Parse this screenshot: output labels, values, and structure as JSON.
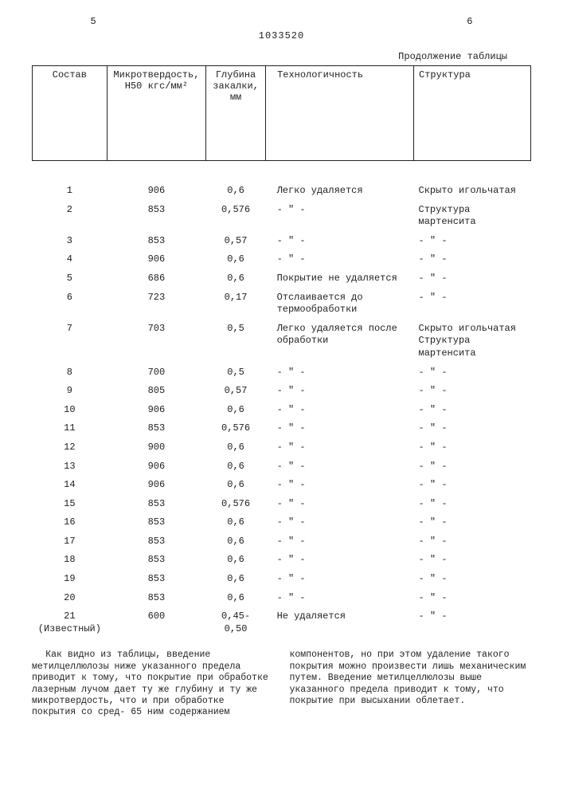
{
  "header": {
    "left_num": "5",
    "right_num": "6",
    "doc_num": "1033520",
    "caption": "Продолжение таблицы"
  },
  "columns": [
    "Состав",
    "Микротвердость,\nH50\nкгс/мм²",
    "Глубина\nзакалки,\nмм",
    "Технологичность",
    "Структура"
  ],
  "ditto": "- \" -",
  "rows": [
    {
      "n": "1",
      "h": "906",
      "d": "0,6",
      "t": "Легко удаляется",
      "s": "Скрыто игольчатая"
    },
    {
      "n": "2",
      "h": "853",
      "d": "0,576",
      "t": "- \" -",
      "s": "Структура мартенсита"
    },
    {
      "n": "3",
      "h": "853",
      "d": "0,57",
      "t": "- \" -",
      "s": "- \" -"
    },
    {
      "n": "4",
      "h": "906",
      "d": "0,6",
      "t": "- \" -",
      "s": "- \" -"
    },
    {
      "n": "5",
      "h": "686",
      "d": "0,6",
      "t": "Покрытие не удаляется",
      "s": "- \" -"
    },
    {
      "n": "6",
      "h": "723",
      "d": "0,17",
      "t": "Отслаивается до термообработки",
      "s": "- \" -"
    },
    {
      "n": "7",
      "h": "703",
      "d": "0,5",
      "t": "Легко удаляется после обработки",
      "s": "Скрыто игольчатая Структура мартенсита"
    },
    {
      "n": "8",
      "h": "700",
      "d": "0,5",
      "t": "- \" -",
      "s": "- \" -"
    },
    {
      "n": "9",
      "h": "805",
      "d": "0,57",
      "t": "- \" -",
      "s": "- \" -"
    },
    {
      "n": "10",
      "h": "906",
      "d": "0,6",
      "t": "- \" -",
      "s": "- \" -"
    },
    {
      "n": "11",
      "h": "853",
      "d": "0,576",
      "t": "- \" -",
      "s": "- \" -"
    },
    {
      "n": "12",
      "h": "900",
      "d": "0,6",
      "t": "- \" -",
      "s": "- \" -"
    },
    {
      "n": "13",
      "h": "906",
      "d": "0,6",
      "t": "- \" -",
      "s": "- \" -"
    },
    {
      "n": "14",
      "h": "906",
      "d": "0,6",
      "t": "- \" -",
      "s": "- \" -"
    },
    {
      "n": "15",
      "h": "853",
      "d": "0,576",
      "t": "- \" -",
      "s": "- \" -"
    },
    {
      "n": "16",
      "h": "853",
      "d": "0,6",
      "t": "- \" -",
      "s": "- \" -"
    },
    {
      "n": "17",
      "h": "853",
      "d": "0,6",
      "t": "- \" -",
      "s": "- \" -"
    },
    {
      "n": "18",
      "h": "853",
      "d": "0,6",
      "t": "- \" -",
      "s": "- \" -"
    },
    {
      "n": "19",
      "h": "853",
      "d": "0,6",
      "t": "- \" -",
      "s": "- \" -"
    },
    {
      "n": "20",
      "h": "853",
      "d": "0,6",
      "t": "- \" -",
      "s": "- \" -"
    },
    {
      "n": "21\n(Известный)",
      "h": "600",
      "d": "0,45-0,50",
      "t": "Не удаляется",
      "s": "- \" -"
    }
  ],
  "body": "Как видно из таблицы, введение метилцеллюлозы ниже указанного предела приводит к тому, что покрытие при обработке лазерным лучом дает ту же глубину и ту же микротвердость, что и при обработке покрытия со сред- 65 ним содержанием компонентов, но при этом удаление такого покрытия можно произвести лишь механическим путем. Введение метилцеллюлозы выше указанного предела приводит к тому, что покрытие при высыхании облетает."
}
